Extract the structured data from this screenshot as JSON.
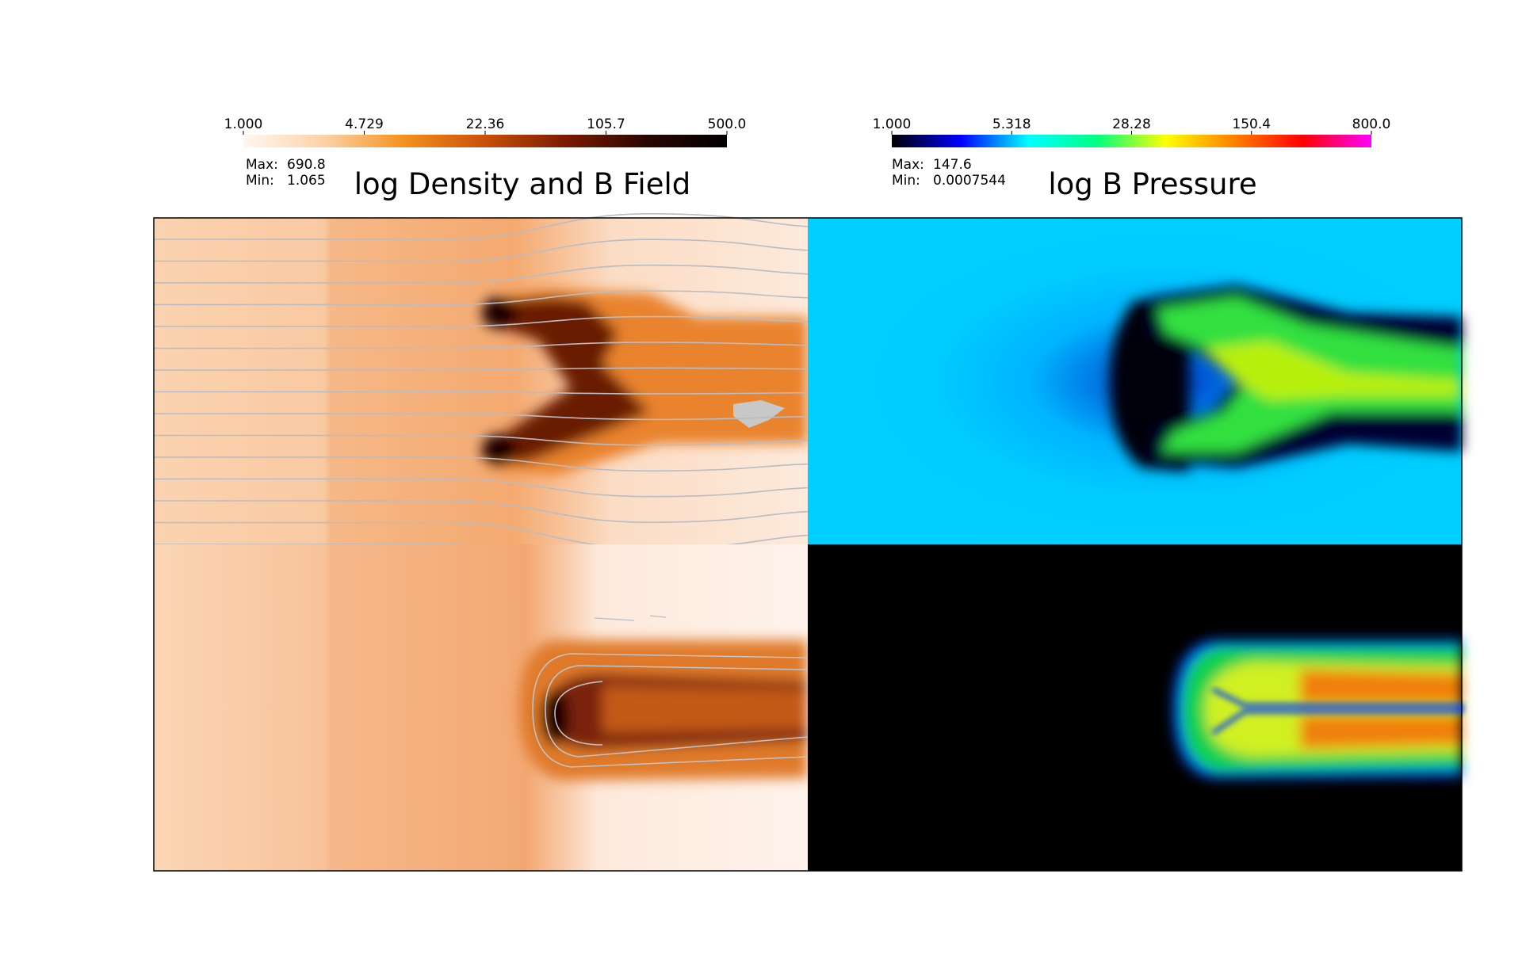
{
  "panels": [
    {
      "title": "log Density and B Field",
      "colorbar": {
        "lim": [
          1,
          500
        ],
        "log": true,
        "ticks": [
          {
            "value": 1,
            "label": "1.000"
          },
          {
            "value": 4.729,
            "label": "4.729"
          },
          {
            "value": 22.36,
            "label": "22.36"
          },
          {
            "value": 105.7,
            "label": "105.7"
          },
          {
            "value": 500,
            "label": "500.0"
          }
        ],
        "colors": [
          "#fff7f0",
          "#fdd2a8",
          "#f5911e",
          "#c8500a",
          "#7a1a04",
          "#2a0600",
          "#000000"
        ]
      },
      "max_label": "Max:",
      "max": 690.8,
      "min_label": "Min:",
      "min": 1.065
    },
    {
      "title": "log B Pressure",
      "colorbar": {
        "lim": [
          1,
          800
        ],
        "log": true,
        "ticks": [
          {
            "value": 1,
            "label": "1.000"
          },
          {
            "value": 5.318,
            "label": "5.318"
          },
          {
            "value": 28.28,
            "label": "28.28"
          },
          {
            "value": 150.4,
            "label": "150.4"
          },
          {
            "value": 800,
            "label": "800.0"
          }
        ],
        "colors": [
          "#000000",
          "#0000ff",
          "#00ffff",
          "#00ff80",
          "#ffff00",
          "#ff8000",
          "#ff0000",
          "#ff00ff"
        ]
      },
      "max_label": "Max:",
      "max": 147.6,
      "min_label": "Min:",
      "min": 0.0007544
    }
  ]
}
